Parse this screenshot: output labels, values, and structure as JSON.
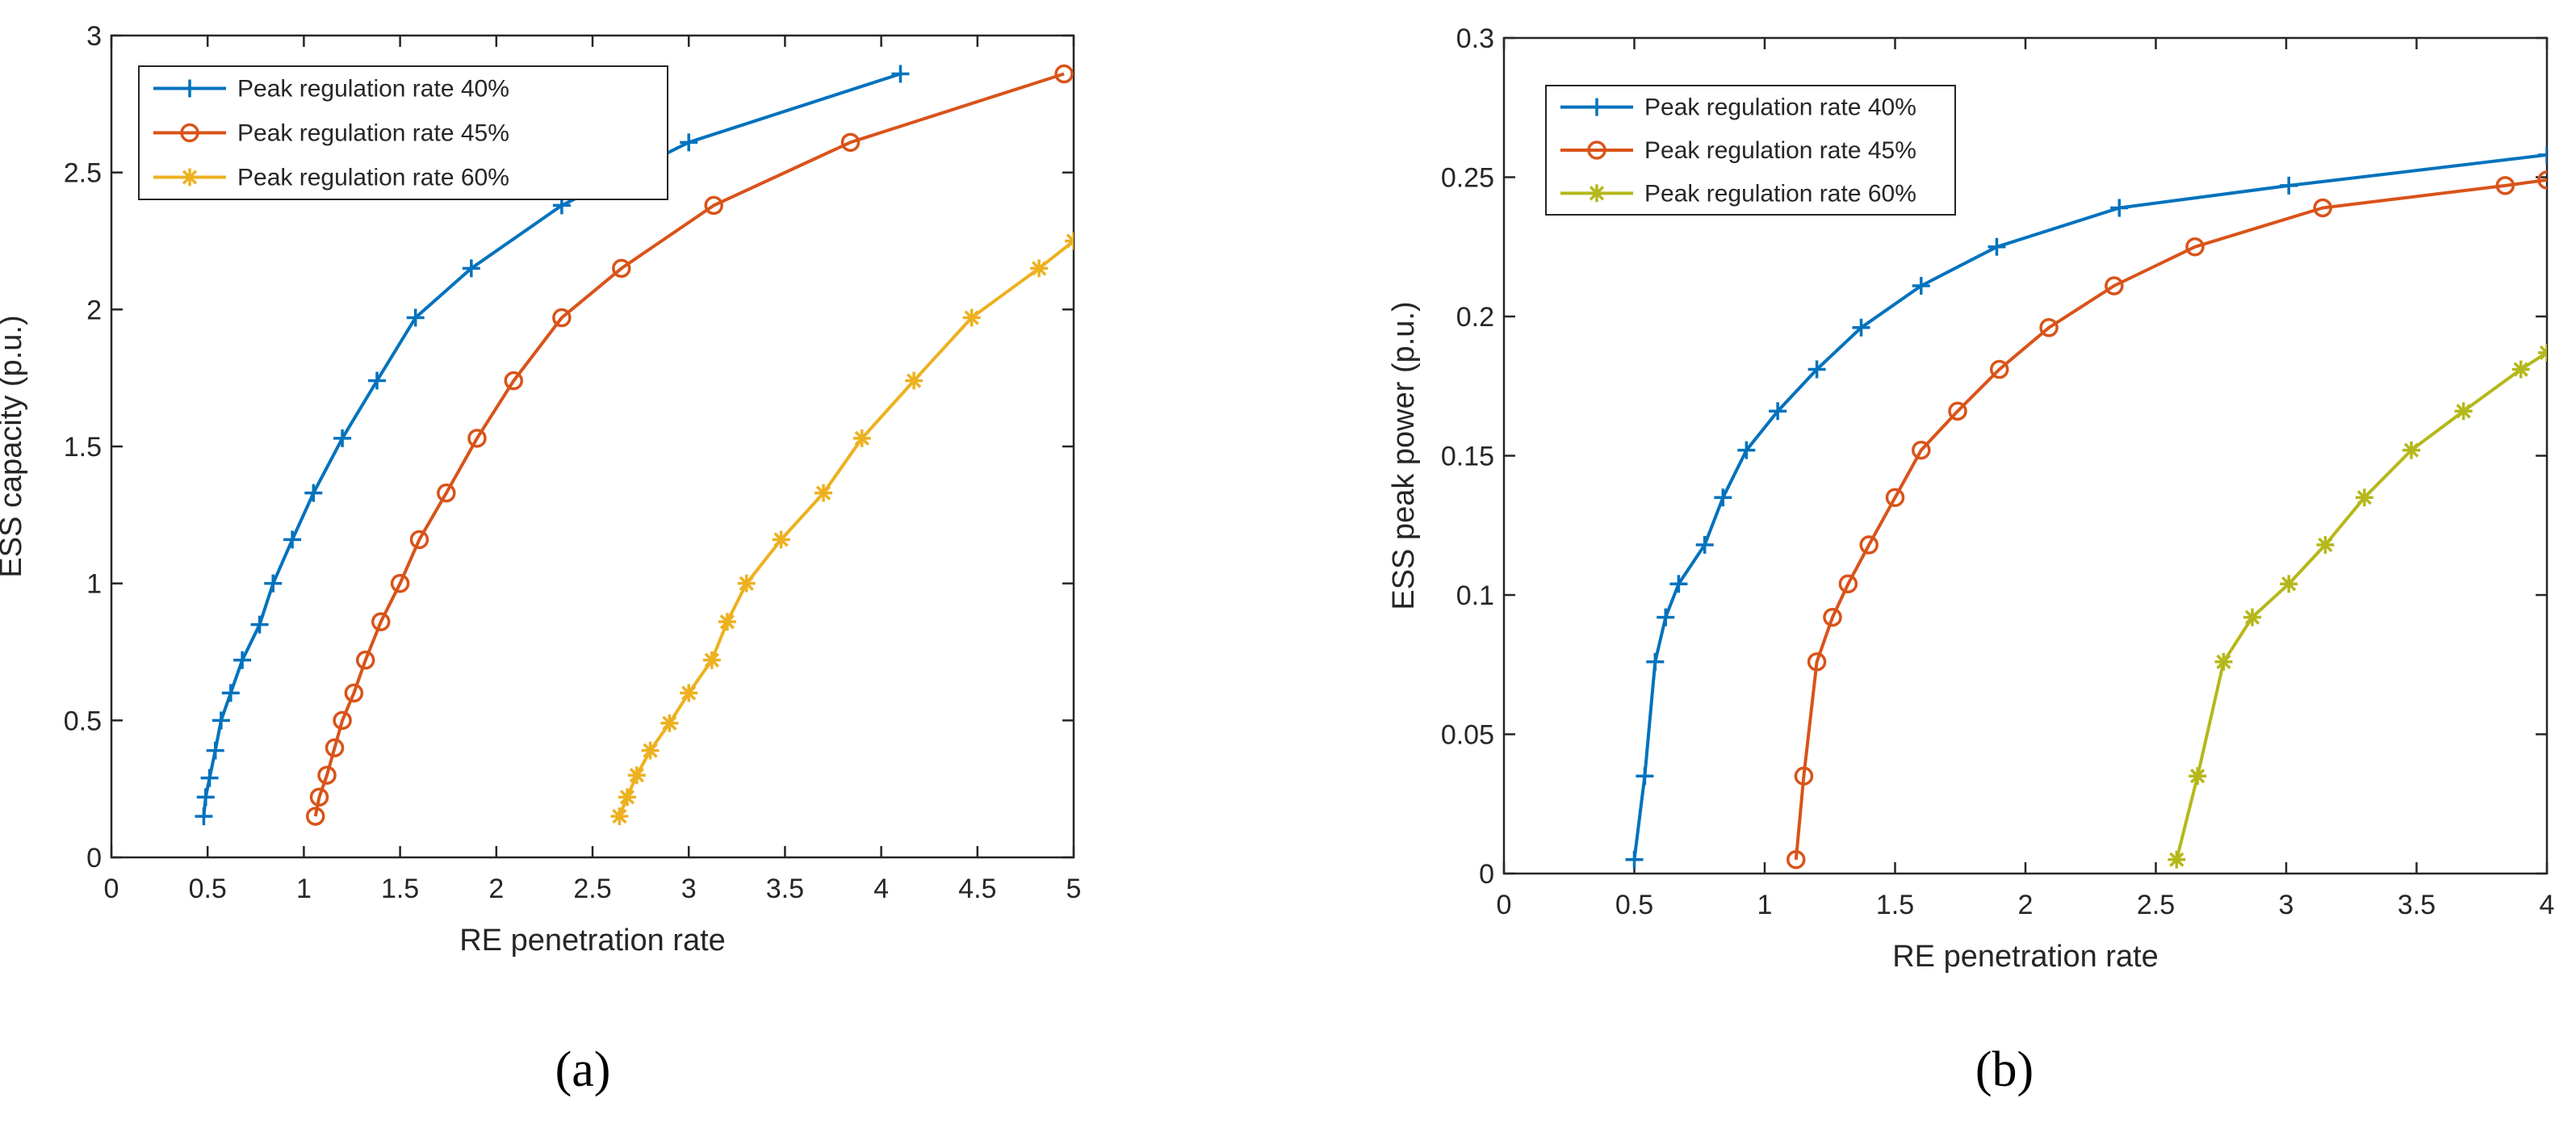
{
  "chart_data": [
    {
      "type": "line",
      "panel_label": "(a)",
      "xlabel": "RE penetration rate",
      "ylabel": "ESS capacity (p.u.)",
      "xlim": [
        0,
        5
      ],
      "ylim": [
        0,
        3
      ],
      "xticks": [
        "0",
        "0.5",
        "1",
        "1.5",
        "2",
        "2.5",
        "3",
        "3.5",
        "4",
        "4.5",
        "5"
      ],
      "yticks": [
        "0",
        "0.5",
        "1",
        "1.5",
        "2",
        "2.5",
        "3"
      ],
      "grid": false,
      "legend_position": "top-left",
      "series": [
        {
          "name": "Peak regulation rate 40%",
          "color": "#0072BD",
          "marker": "plus",
          "x": [
            0.48,
            0.49,
            0.51,
            0.54,
            0.57,
            0.62,
            0.68,
            0.77,
            0.84,
            0.94,
            1.05,
            1.2,
            1.38,
            1.58,
            1.87,
            2.34,
            3.0,
            4.1
          ],
          "y": [
            0.15,
            0.22,
            0.29,
            0.39,
            0.5,
            0.6,
            0.72,
            0.85,
            1.0,
            1.16,
            1.33,
            1.53,
            1.74,
            1.97,
            2.15,
            2.38,
            2.61,
            2.86
          ]
        },
        {
          "name": "Peak regulation rate 45%",
          "color": "#D95319",
          "marker": "circle",
          "x": [
            1.06,
            1.08,
            1.12,
            1.16,
            1.2,
            1.26,
            1.32,
            1.4,
            1.5,
            1.6,
            1.74,
            1.9,
            2.09,
            2.34,
            2.65,
            3.13,
            3.84,
            4.95
          ],
          "y": [
            0.15,
            0.22,
            0.3,
            0.4,
            0.5,
            0.6,
            0.72,
            0.86,
            1.0,
            1.16,
            1.33,
            1.53,
            1.74,
            1.97,
            2.15,
            2.38,
            2.61,
            2.86
          ]
        },
        {
          "name": "Peak regulation rate 60%",
          "color": "#EDB120",
          "marker": "star",
          "x": [
            2.64,
            2.68,
            2.73,
            2.8,
            2.9,
            3.0,
            3.12,
            3.2,
            3.3,
            3.48,
            3.7,
            3.9,
            4.17,
            4.47,
            4.82,
            5.0
          ],
          "y": [
            0.15,
            0.22,
            0.3,
            0.39,
            0.49,
            0.6,
            0.72,
            0.86,
            1.0,
            1.16,
            1.33,
            1.53,
            1.74,
            1.97,
            2.15,
            2.25
          ]
        }
      ]
    },
    {
      "type": "line",
      "panel_label": "(b)",
      "xlabel": "RE penetration rate",
      "ylabel": "ESS peak power (p.u.)",
      "xlim": [
        0,
        4
      ],
      "ylim": [
        0,
        0.3
      ],
      "xticks": [
        "0",
        "0.5",
        "1",
        "1.5",
        "2",
        "2.5",
        "3",
        "3.5",
        "4"
      ],
      "yticks": [
        "0",
        "0.05",
        "0.1",
        "0.15",
        "0.2",
        "0.25",
        "0.3"
      ],
      "grid": false,
      "legend_position": "top-left",
      "series": [
        {
          "name": "Peak regulation rate 40%",
          "color": "#0072BD",
          "marker": "plus",
          "x": [
            0.5,
            0.54,
            0.58,
            0.62,
            0.67,
            0.77,
            0.84,
            0.93,
            1.05,
            1.2,
            1.37,
            1.6,
            1.89,
            2.36,
            3.01,
            4.0
          ],
          "y": [
            0.005,
            0.035,
            0.076,
            0.092,
            0.104,
            0.118,
            0.135,
            0.152,
            0.166,
            0.181,
            0.196,
            0.211,
            0.225,
            0.239,
            0.247,
            0.258
          ]
        },
        {
          "name": "Peak regulation rate 45%",
          "color": "#D95319",
          "marker": "circle",
          "x": [
            1.12,
            1.15,
            1.2,
            1.26,
            1.32,
            1.4,
            1.5,
            1.6,
            1.74,
            1.9,
            2.09,
            2.34,
            2.65,
            3.14,
            3.84,
            4.0
          ],
          "y": [
            0.005,
            0.035,
            0.076,
            0.092,
            0.104,
            0.118,
            0.135,
            0.152,
            0.166,
            0.181,
            0.196,
            0.211,
            0.225,
            0.239,
            0.247,
            0.249
          ]
        },
        {
          "name": "Peak regulation rate 60%",
          "color": "#B5B81A",
          "marker": "star",
          "x": [
            2.58,
            2.66,
            2.76,
            2.87,
            3.01,
            3.15,
            3.3,
            3.48,
            3.68,
            3.9,
            4.0
          ],
          "y": [
            0.005,
            0.035,
            0.076,
            0.092,
            0.104,
            0.118,
            0.135,
            0.152,
            0.166,
            0.181,
            0.187
          ]
        }
      ]
    }
  ]
}
